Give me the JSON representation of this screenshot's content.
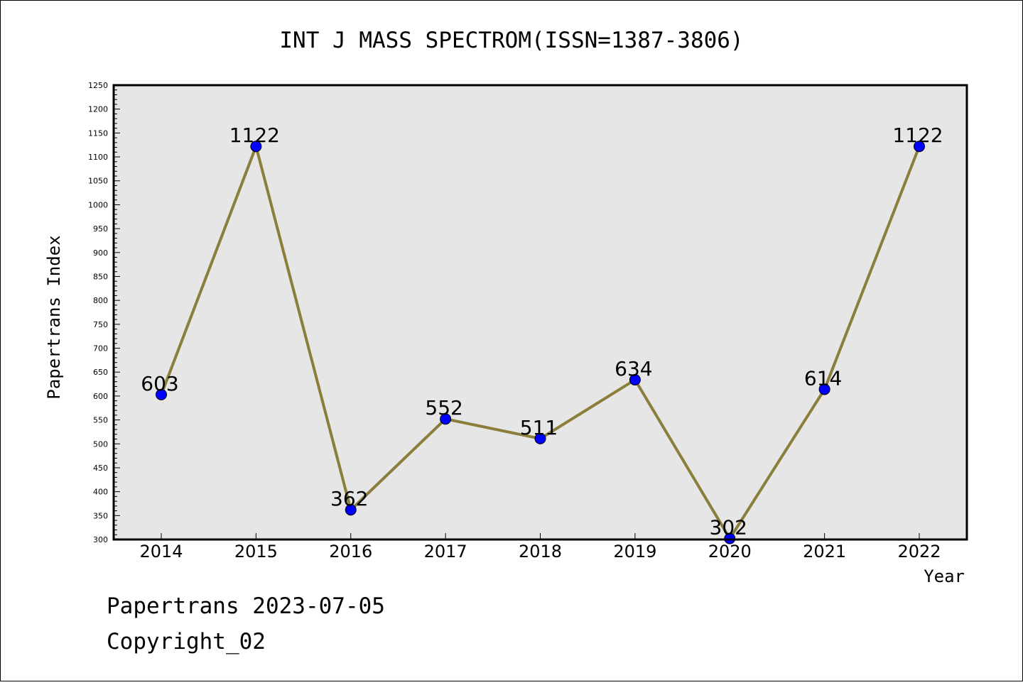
{
  "chart_data": {
    "type": "line",
    "title": "INT J MASS SPECTROM(ISSN=1387-3806)",
    "xlabel": "Year",
    "ylabel": "Papertrans Index",
    "categories": [
      "2014",
      "2015",
      "2016",
      "2017",
      "2018",
      "2019",
      "2020",
      "2021",
      "2022"
    ],
    "series": [
      {
        "values": [
          603,
          1122,
          362,
          552,
          511,
          634,
          302,
          614,
          1122
        ]
      }
    ],
    "data_labels": [
      "603",
      "1122",
      "362",
      "552",
      "511",
      "634",
      "302",
      "614",
      "1122"
    ],
    "ylim": [
      300,
      1250
    ],
    "yticks": [
      300,
      350,
      400,
      450,
      500,
      550,
      600,
      650,
      700,
      750,
      800,
      850,
      900,
      950,
      1000,
      1050,
      1100,
      1150,
      1200,
      1250
    ],
    "grid": false,
    "legend": "none",
    "colors": {
      "line": "#8B7D3A",
      "marker": "#0000FF",
      "plot_background": "#E6E6E6",
      "frame": "#000000"
    }
  },
  "footer": {
    "line1": "Papertrans 2023-07-05",
    "line2": "Copyright_02"
  }
}
